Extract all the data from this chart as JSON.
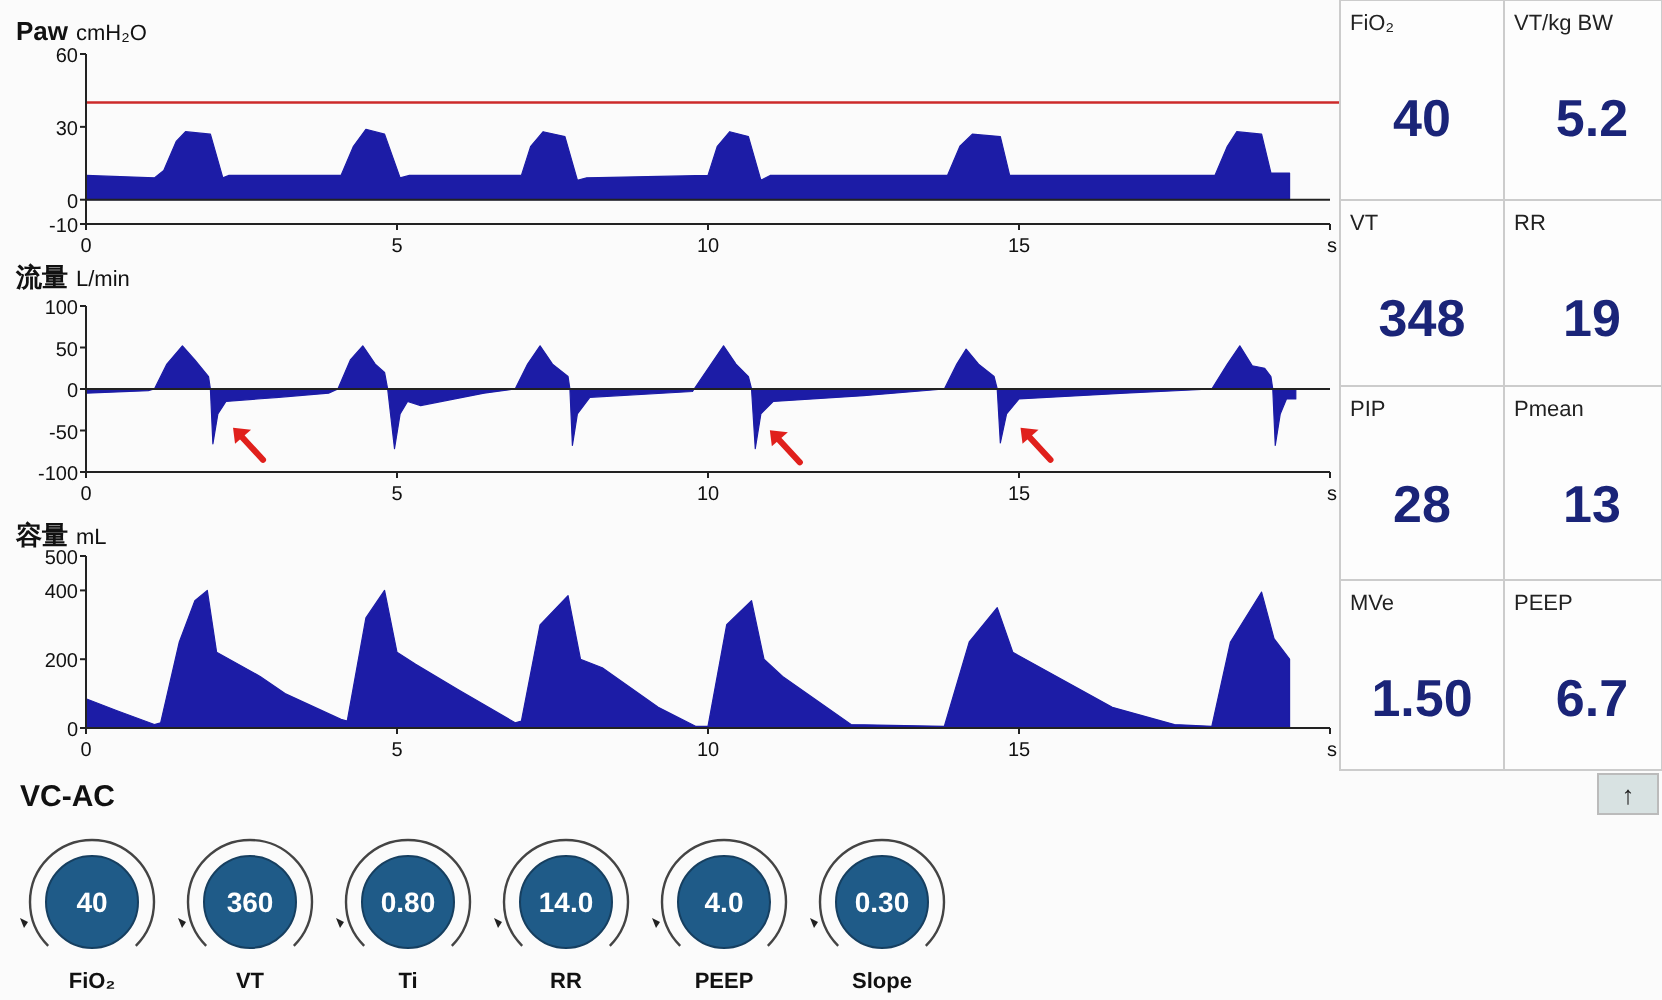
{
  "chart_data": [
    {
      "type": "area",
      "title": "Paw",
      "ylabel": "cmH₂O",
      "xlabel": "s",
      "xlim": [
        0,
        20
      ],
      "xticks": [
        0,
        5,
        10,
        15
      ],
      "ylim": [
        -10,
        60
      ],
      "yticks": [
        60,
        30,
        0,
        -10
      ],
      "color": "#1c1ca6",
      "x": [
        0,
        1.1,
        1.25,
        1.45,
        1.6,
        2.0,
        2.2,
        2.3,
        4.1,
        4.3,
        4.5,
        4.8,
        5.05,
        5.2,
        7.0,
        7.15,
        7.35,
        7.7,
        7.9,
        8.05,
        10.0,
        10.15,
        10.35,
        10.65,
        10.85,
        11.0,
        13.85,
        14.05,
        14.25,
        14.7,
        14.85,
        18.15,
        18.35,
        18.5,
        18.9,
        19.05,
        19.35
      ],
      "values": [
        10,
        9,
        12,
        24,
        28,
        27,
        9,
        10,
        10,
        22,
        29,
        27,
        9,
        10,
        10,
        22,
        28,
        26,
        8,
        9,
        10,
        22,
        28,
        26,
        8,
        10,
        10,
        22,
        27,
        26,
        10,
        10,
        22,
        28,
        27,
        11,
        11
      ],
      "ref_lines": [
        {
          "axis": "y",
          "value": 40,
          "color": "#cc2a2a"
        }
      ]
    },
    {
      "type": "area",
      "title": "流量",
      "ylabel": "L/min",
      "xlabel": "s",
      "xlim": [
        0,
        20
      ],
      "xticks": [
        0,
        5,
        10,
        15
      ],
      "ylim": [
        -100,
        100
      ],
      "yticks": [
        100,
        50,
        0,
        -50,
        -100
      ],
      "color": "#1c1ca6",
      "x": [
        0,
        1.0,
        1.1,
        1.3,
        1.55,
        1.75,
        1.97,
        2.0,
        2.04,
        2.12,
        2.25,
        3.1,
        3.9,
        4.05,
        4.25,
        4.45,
        4.65,
        4.8,
        4.85,
        4.96,
        5.05,
        5.17,
        5.38,
        6.4,
        6.9,
        7.1,
        7.3,
        7.5,
        7.75,
        7.78,
        7.82,
        7.9,
        8.1,
        9.75,
        10.05,
        10.25,
        10.45,
        10.65,
        10.7,
        10.76,
        10.85,
        11.05,
        12.5,
        13.8,
        14.0,
        14.15,
        14.35,
        14.6,
        14.65,
        14.7,
        14.8,
        15.0,
        16.7,
        18.1,
        18.35,
        18.55,
        18.75,
        18.95,
        19.05,
        19.08,
        19.12,
        19.2,
        19.3,
        19.45
      ],
      "values": [
        -5,
        -2,
        0,
        30,
        52,
        35,
        15,
        0,
        -66,
        -30,
        -15,
        -10,
        -5,
        0,
        35,
        52,
        30,
        20,
        0,
        -72,
        -30,
        -15,
        -20,
        -5,
        0,
        30,
        52,
        30,
        15,
        0,
        -68,
        -30,
        -10,
        -3,
        30,
        52,
        30,
        15,
        0,
        -72,
        -30,
        -15,
        -8,
        0,
        30,
        48,
        30,
        15,
        0,
        -65,
        -30,
        -12,
        -5,
        0,
        30,
        52,
        28,
        25,
        15,
        0,
        -68,
        -30,
        -12,
        -12
      ]
    },
    {
      "type": "area",
      "title": "容量",
      "ylabel": "mL",
      "xlabel": "s",
      "xlim": [
        0,
        20
      ],
      "xticks": [
        0,
        5,
        10,
        15
      ],
      "ylim": [
        0,
        500
      ],
      "yticks": [
        500,
        400,
        200,
        0
      ],
      "color": "#1c1ca6",
      "x": [
        0,
        0.5,
        1.1,
        1.2,
        1.5,
        1.75,
        1.95,
        2.1,
        2.8,
        3.2,
        4.1,
        4.2,
        4.5,
        4.8,
        5.0,
        5.3,
        6.0,
        6.9,
        7.0,
        7.3,
        7.75,
        7.95,
        8.3,
        9.2,
        9.8,
        10.0,
        10.3,
        10.7,
        10.9,
        11.2,
        12.3,
        13.8,
        14.2,
        14.65,
        14.9,
        16.5,
        17.5,
        18.1,
        18.4,
        18.9,
        19.1,
        19.35
      ],
      "values": [
        85,
        50,
        10,
        15,
        250,
        370,
        400,
        220,
        150,
        100,
        25,
        20,
        320,
        400,
        220,
        185,
        110,
        15,
        20,
        300,
        385,
        200,
        175,
        60,
        5,
        5,
        300,
        370,
        200,
        150,
        10,
        5,
        250,
        350,
        220,
        60,
        10,
        5,
        250,
        395,
        260,
        200
      ]
    },
    {
      "type": "other",
      "categories": [
        "FiO₂",
        "VT/kg BW",
        "VT",
        "RR",
        "PIP",
        "Pmean",
        "MVe",
        "PEEP"
      ],
      "value_labels": [
        "40",
        "5.2",
        "348",
        "19",
        "28",
        "13",
        "1.50",
        "6.7"
      ]
    },
    {
      "type": "other",
      "title": "VC-AC",
      "categories": [
        "FiO₂",
        "VT",
        "Ti",
        "RR",
        "PEEP",
        "Slope"
      ],
      "value_labels": [
        "40",
        "360",
        "0.80",
        "14.0",
        "4.0",
        "0.30"
      ],
      "annotations": [
        "↑"
      ]
    }
  ]
}
